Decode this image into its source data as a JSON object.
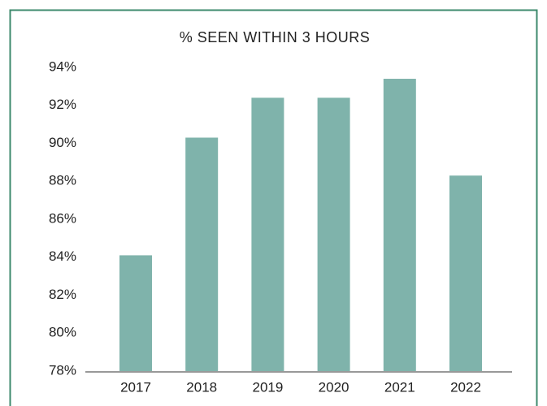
{
  "chart_data": {
    "type": "bar",
    "title": "% SEEN WITHIN 3 HOURS",
    "categories": [
      "2017",
      "2018",
      "2019",
      "2020",
      "2021",
      "2022"
    ],
    "values": [
      84.1,
      90.3,
      92.4,
      92.4,
      93.4,
      88.3
    ],
    "color": "#7fb3ab",
    "ylim": [
      78,
      94
    ],
    "yticks": [
      {
        "value": 78,
        "label": "78%"
      },
      {
        "value": 80,
        "label": "80%"
      },
      {
        "value": 82,
        "label": "82%"
      },
      {
        "value": 84,
        "label": "84%"
      },
      {
        "value": 86,
        "label": "86%"
      },
      {
        "value": 88,
        "label": "88%"
      },
      {
        "value": 90,
        "label": "90%"
      },
      {
        "value": 92,
        "label": "92%"
      },
      {
        "value": 94,
        "label": "94%"
      }
    ],
    "grid": false
  }
}
